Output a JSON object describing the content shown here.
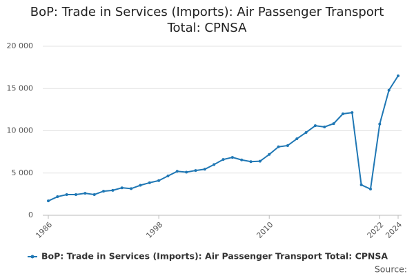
{
  "chart_data": {
    "type": "line",
    "title": "BoP: Trade in Services (Imports): Air Passenger Transport Total: CPNSA",
    "x": [
      1986,
      1987,
      1988,
      1989,
      1990,
      1991,
      1992,
      1993,
      1994,
      1995,
      1996,
      1997,
      1998,
      1999,
      2000,
      2001,
      2002,
      2003,
      2004,
      2005,
      2006,
      2007,
      2008,
      2009,
      2010,
      2011,
      2012,
      2013,
      2014,
      2015,
      2016,
      2017,
      2018,
      2019,
      2020,
      2021,
      2022,
      2023,
      2024
    ],
    "series": [
      {
        "name": "BoP: Trade in Services (Imports): Air Passenger Transport Total: CPNSA",
        "color": "#1f77b4",
        "values": [
          1700,
          2200,
          2450,
          2450,
          2600,
          2450,
          2850,
          2950,
          3250,
          3150,
          3550,
          3850,
          4100,
          4650,
          5200,
          5100,
          5300,
          5450,
          6000,
          6600,
          6850,
          6550,
          6350,
          6400,
          7200,
          8100,
          8250,
          9050,
          9800,
          10600,
          10450,
          10850,
          12000,
          12150,
          3600,
          3100,
          10800,
          14800,
          16500
        ]
      }
    ],
    "xlim": [
      1986,
      2024
    ],
    "xticks": [
      1986,
      1998,
      2010,
      2022,
      2024
    ],
    "ylim": [
      0,
      20000
    ],
    "yticks": [
      0,
      {
        "value": 5000,
        "label": "5 000"
      },
      {
        "value": 10000,
        "label": "10 000"
      },
      {
        "value": 15000,
        "label": "15 000"
      },
      {
        "value": 20000,
        "label": "20 000"
      }
    ],
    "grid": true,
    "source": "Source:"
  }
}
